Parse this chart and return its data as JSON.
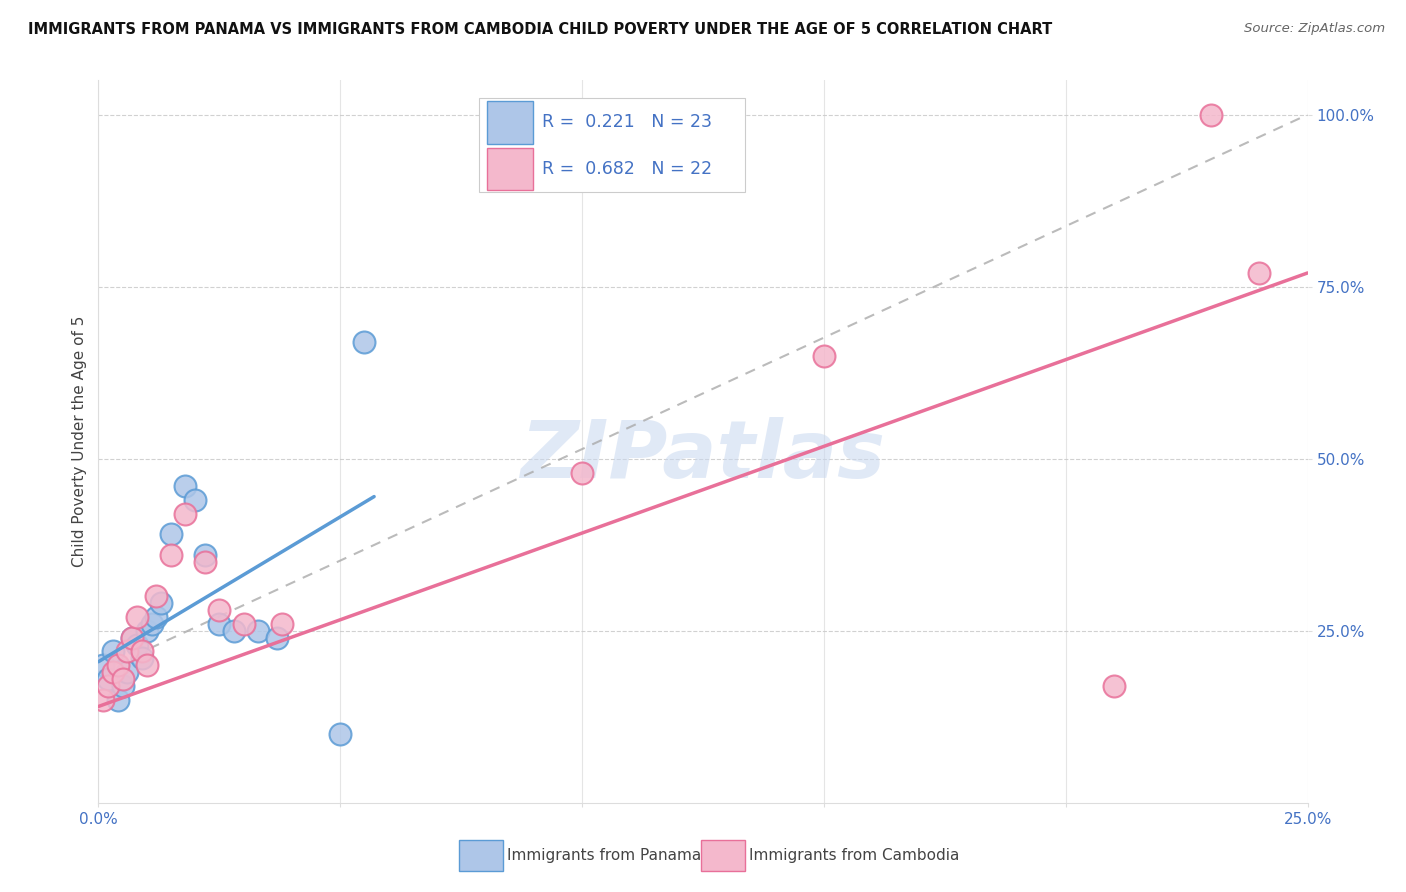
{
  "title": "IMMIGRANTS FROM PANAMA VS IMMIGRANTS FROM CAMBODIA CHILD POVERTY UNDER THE AGE OF 5 CORRELATION CHART",
  "source": "Source: ZipAtlas.com",
  "ylabel": "Child Poverty Under the Age of 5",
  "xlim": [
    0.0,
    0.25
  ],
  "ylim": [
    0.0,
    1.05
  ],
  "panama_color": "#aec6e8",
  "panama_edge": "#5b9bd5",
  "cambodia_color": "#f4b8cc",
  "cambodia_edge": "#e87099",
  "panama_line_color": "#5b9bd5",
  "cambodia_line_color": "#e87099",
  "legend_text_color": "#4472c4",
  "panama_R": 0.221,
  "panama_N": 23,
  "cambodia_R": 0.682,
  "cambodia_N": 22,
  "watermark": "ZIPatlas",
  "panama_scatter_x": [
    0.001,
    0.002,
    0.003,
    0.004,
    0.005,
    0.006,
    0.007,
    0.008,
    0.009,
    0.01,
    0.011,
    0.012,
    0.013,
    0.015,
    0.018,
    0.02,
    0.022,
    0.025,
    0.028,
    0.033,
    0.037,
    0.05,
    0.055
  ],
  "panama_scatter_y": [
    0.2,
    0.18,
    0.22,
    0.15,
    0.17,
    0.19,
    0.24,
    0.23,
    0.21,
    0.25,
    0.26,
    0.27,
    0.29,
    0.39,
    0.46,
    0.44,
    0.36,
    0.26,
    0.25,
    0.25,
    0.24,
    0.1,
    0.67
  ],
  "cambodia_scatter_x": [
    0.001,
    0.002,
    0.003,
    0.004,
    0.005,
    0.006,
    0.007,
    0.008,
    0.009,
    0.01,
    0.012,
    0.015,
    0.018,
    0.022,
    0.025,
    0.03,
    0.038,
    0.1,
    0.15,
    0.21,
    0.23,
    0.24
  ],
  "cambodia_scatter_y": [
    0.15,
    0.17,
    0.19,
    0.2,
    0.18,
    0.22,
    0.24,
    0.27,
    0.22,
    0.2,
    0.3,
    0.36,
    0.42,
    0.35,
    0.28,
    0.26,
    0.26,
    0.48,
    0.65,
    0.17,
    1.0,
    0.77
  ],
  "panama_line_x": [
    0.0,
    0.057
  ],
  "panama_line_y": [
    0.205,
    0.445
  ],
  "cambodia_line_x": [
    0.0,
    0.25
  ],
  "cambodia_line_y": [
    0.14,
    0.77
  ],
  "dashed_line_x": [
    0.0,
    0.25
  ],
  "dashed_line_y": [
    0.19,
    1.0
  ]
}
